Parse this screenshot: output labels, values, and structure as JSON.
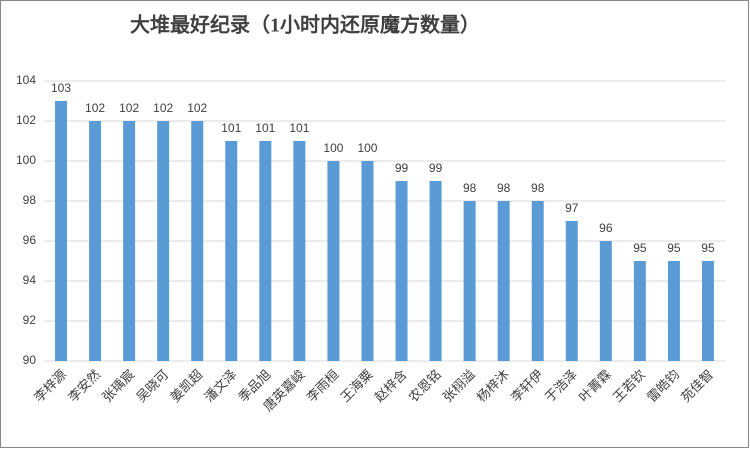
{
  "chart_data": {
    "type": "bar",
    "title": "大堆最好纪录（1小时内还原魔方数量）",
    "categories": [
      "李梓源",
      "李安然",
      "张瑀宸",
      "吴晓可",
      "姜凯超",
      "潘文泽",
      "季品旭",
      "唐英嘉峻",
      "李雨桓",
      "王海粟",
      "赵梓含",
      "农恩铭",
      "张栩溢",
      "杨梓沐",
      "李轩伊",
      "于浩泽",
      "叶菁霖",
      "王若钦",
      "雷皓钧",
      "苑佳智"
    ],
    "values": [
      103,
      102,
      102,
      102,
      102,
      101,
      101,
      101,
      100,
      100,
      99,
      99,
      98,
      98,
      98,
      97,
      96,
      95,
      95,
      95
    ],
    "color": "#5b9bd5",
    "ylim": [
      90,
      104
    ],
    "yticks": [
      90,
      92,
      94,
      96,
      98,
      100,
      102,
      104
    ],
    "grid": true
  }
}
